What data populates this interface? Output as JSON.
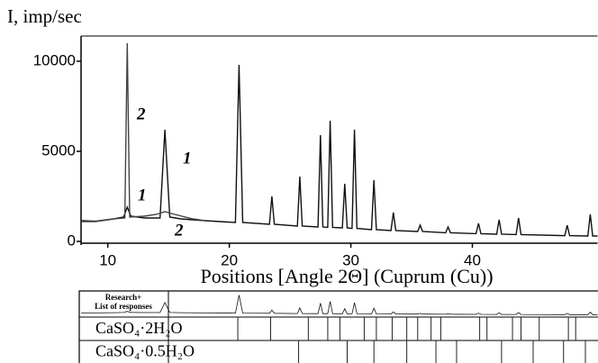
{
  "chart_data": {
    "type": "line",
    "y_label": "I, imp/sec",
    "x_label": "Positions [Angle 2Θ] (Cuprum (Cu))",
    "xlim": [
      7.8,
      50.3
    ],
    "xticks": [
      10,
      20,
      30,
      40
    ],
    "ylim": [
      0,
      11400
    ],
    "yticks": [
      0,
      5000,
      10000
    ],
    "grid": false,
    "series": [
      {
        "color": "#111111",
        "x": [
          7.8,
          9,
          10.5,
          11.3,
          11.6,
          11.9,
          13,
          14.3,
          14.7,
          15.1,
          16,
          18,
          20.5,
          20.8,
          21.1,
          23.3,
          23.5,
          23.7,
          25.6,
          25.8,
          26,
          27.3,
          27.5,
          27.7,
          28.1,
          28.3,
          28.5,
          29.3,
          29.5,
          29.7,
          30.1,
          30.3,
          30.5,
          31.7,
          31.9,
          32.1,
          33.3,
          33.5,
          33.7,
          35.5,
          35.7,
          35.9,
          37.8,
          38,
          38.2,
          40.3,
          40.5,
          40.7,
          42,
          42.2,
          42.4,
          43.6,
          43.8,
          44,
          47.6,
          47.8,
          48,
          49.5,
          49.7,
          49.9,
          50.3
        ],
        "values": [
          1150,
          1120,
          1250,
          1350,
          1900,
          1400,
          1300,
          1300,
          6200,
          1350,
          1250,
          1150,
          1050,
          9800,
          1050,
          950,
          2500,
          950,
          850,
          3600,
          850,
          800,
          5900,
          800,
          780,
          6700,
          780,
          750,
          3200,
          750,
          720,
          6200,
          720,
          650,
          3400,
          650,
          600,
          1600,
          600,
          550,
          900,
          550,
          480,
          800,
          480,
          430,
          1000,
          430,
          400,
          1200,
          400,
          380,
          1300,
          380,
          320,
          900,
          320,
          300,
          1500,
          300,
          300
        ]
      },
      {
        "color": "#444444",
        "x": [
          7.8,
          9,
          10.5,
          11.4,
          11.6,
          11.8,
          13,
          14,
          14.7,
          15.5,
          17,
          18
        ],
        "values": [
          1100,
          1100,
          1250,
          1300,
          11000,
          1350,
          1400,
          1500,
          1650,
          1500,
          1250,
          1150
        ]
      }
    ],
    "annotations": [
      "2",
      "1",
      "1",
      "2"
    ],
    "panel_label": [
      "Research+",
      "List of responses"
    ],
    "reference_rows": [
      {
        "name": "CaSO₄·2H₂O",
        "positions": [
          11.6,
          20.7,
          23.4,
          26.5,
          28.1,
          29.1,
          31.1,
          32.1,
          33.4,
          34.6,
          35.5,
          36.6,
          37.4,
          40.6,
          41.2,
          43.3,
          44.0,
          45.5,
          47.9,
          48.5
        ]
      },
      {
        "name": "CaSO₄·0.5H₂O",
        "positions": [
          14.7,
          25.7,
          29.7,
          31.9,
          34.6,
          37.0,
          38.7,
          42.4,
          45.0,
          47.5,
          49.3
        ]
      }
    ]
  }
}
